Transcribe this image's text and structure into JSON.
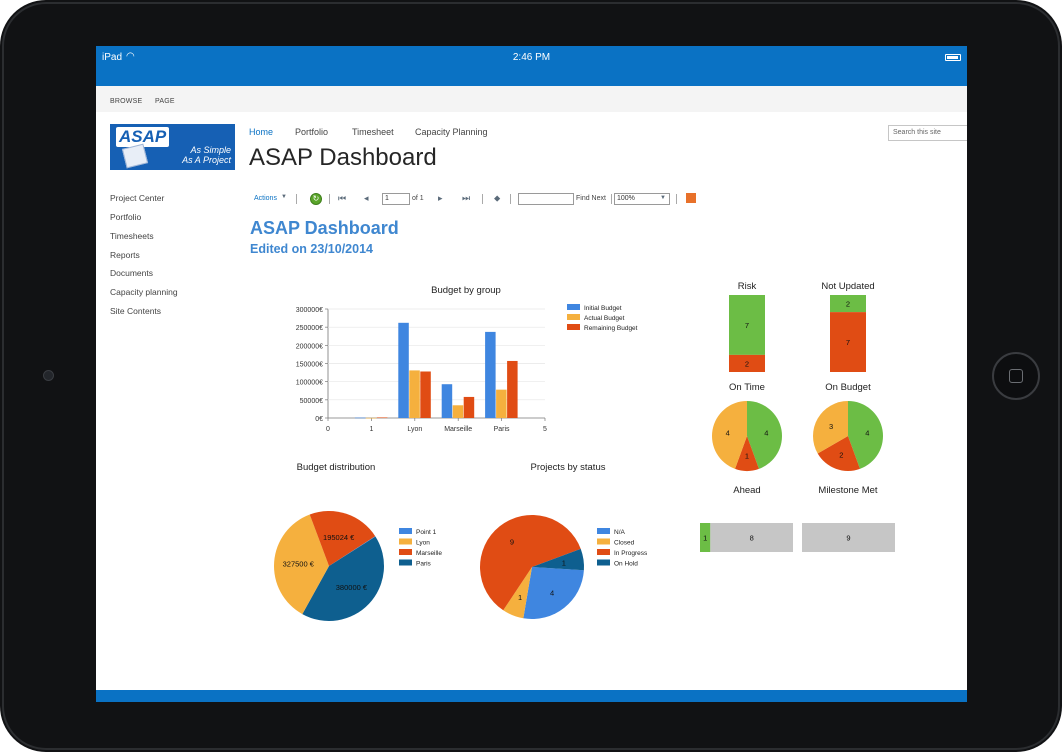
{
  "status_bar": {
    "carrier": "iPad",
    "wifi_icon": "wifi-icon",
    "time": "2:46 PM"
  },
  "ribbon": {
    "tabs": [
      "BROWSE",
      "PAGE"
    ]
  },
  "logo": {
    "word": "ASAP",
    "tagline_1": "As Simple",
    "tagline_2": "As A Project"
  },
  "top_nav": [
    "Home",
    "Portfolio",
    "Timesheet",
    "Capacity Planning"
  ],
  "search": {
    "placeholder": "Search this site"
  },
  "page": {
    "title": "ASAP Dashboard"
  },
  "side_nav": [
    "Project Center",
    "Portfolio",
    "Timesheets",
    "Reports",
    "Documents",
    "Capacity planning",
    "Site Contents"
  ],
  "toolbar": {
    "actions_label": "Actions",
    "page_value": "1",
    "page_of": "of 1",
    "find_next_label": "Find Next",
    "zoom_value": "100%"
  },
  "report": {
    "title": "ASAP Dashboard",
    "subtitle": "Edited on 23/10/2014"
  },
  "colors": {
    "blue": "#3f86e0",
    "orange": "#f5b03e",
    "red": "#e04c14",
    "navy": "#0e5f8f",
    "green": "#6cbd45",
    "gray": "#c6c6c6",
    "accent": "#0a72c4"
  },
  "chart_data": [
    {
      "type": "bar",
      "title": "Budget by group",
      "categories": [
        "1",
        "Lyon",
        "Marseille",
        "Paris"
      ],
      "x_ticks": [
        "0",
        "1",
        "Lyon",
        "Marseille",
        "Paris",
        "5"
      ],
      "y_ticks": [
        "300000€",
        "250000€",
        "200000€",
        "150000€",
        "100000€",
        "50000€",
        "0€"
      ],
      "ylim": [
        0,
        300000
      ],
      "legend_position": "right",
      "series": [
        {
          "name": "Initial Budget",
          "values": [
            1000,
            262000,
            93000,
            237000
          ]
        },
        {
          "name": "Actual Budget",
          "values": [
            500,
            131000,
            35000,
            78000
          ]
        },
        {
          "name": "Remaining Budget",
          "values": [
            1500,
            128000,
            58000,
            157000
          ]
        }
      ]
    },
    {
      "type": "pie",
      "title": "Budget distribution",
      "legend_position": "right",
      "legend": [
        "Point 1",
        "Lyon",
        "Marseille",
        "Paris"
      ],
      "slices": [
        {
          "name": "Point 1",
          "value": 1000,
          "label": ""
        },
        {
          "name": "Lyon",
          "value": 327500,
          "label": "327500 €"
        },
        {
          "name": "Marseille",
          "value": 195024,
          "label": "195024 €"
        },
        {
          "name": "Paris",
          "value": 380000,
          "label": "380000 €"
        }
      ]
    },
    {
      "type": "pie",
      "title": "Projects by status",
      "legend_position": "right",
      "legend": [
        "N/A",
        "Closed",
        "In Progress",
        "On Hold"
      ],
      "slices": [
        {
          "name": "N/A",
          "value": 4,
          "label": "4"
        },
        {
          "name": "Closed",
          "value": 1,
          "label": "1"
        },
        {
          "name": "In Progress",
          "value": 9,
          "label": "9"
        },
        {
          "name": "On Hold",
          "value": 1,
          "label": "1"
        }
      ]
    },
    {
      "type": "bar",
      "title": "Risk",
      "orientation": "stacked-vertical",
      "segments": [
        {
          "value": 7,
          "color": "green"
        },
        {
          "value": 2,
          "color": "red"
        }
      ]
    },
    {
      "type": "bar",
      "title": "Not Updated",
      "orientation": "stacked-vertical",
      "segments": [
        {
          "value": 2,
          "color": "green"
        },
        {
          "value": 7,
          "color": "red"
        }
      ]
    },
    {
      "type": "pie",
      "title": "On Time",
      "slices": [
        {
          "value": 4,
          "color": "green"
        },
        {
          "value": 1,
          "color": "red"
        },
        {
          "value": 4,
          "color": "orange"
        }
      ]
    },
    {
      "type": "pie",
      "title": "On Budget",
      "slices": [
        {
          "value": 4,
          "color": "green"
        },
        {
          "value": 2,
          "color": "red"
        },
        {
          "value": 3,
          "color": "orange"
        }
      ]
    },
    {
      "type": "bar",
      "title": "Ahead",
      "orientation": "stacked-horizontal",
      "segments": [
        {
          "value": 1,
          "color": "green"
        },
        {
          "value": 8,
          "color": "gray"
        }
      ]
    },
    {
      "type": "bar",
      "title": "Milestone Met",
      "orientation": "stacked-horizontal",
      "segments": [
        {
          "value": 9,
          "color": "gray"
        }
      ]
    }
  ]
}
